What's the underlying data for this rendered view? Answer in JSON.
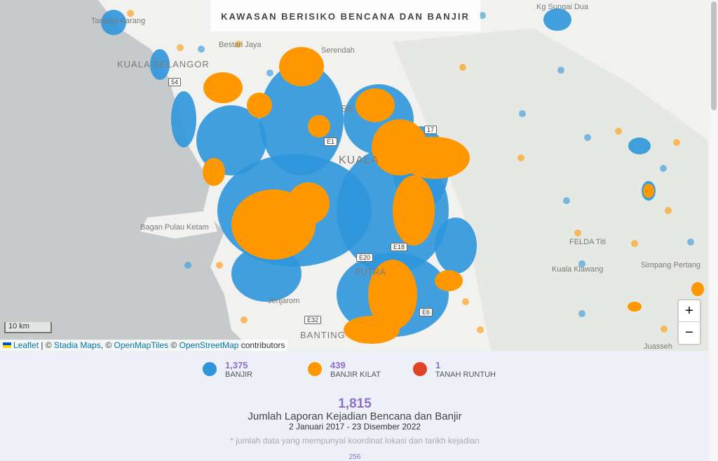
{
  "map": {
    "title": "KAWASAN BERISIKO BENCANA DAN BANJIR",
    "labels": [
      "Tanjong Karang",
      "Bestari Jaya",
      "Serendah",
      "KUALA SELANGOR",
      "Kg Sungai Dua",
      "Bagan Pulau Ketam",
      "FELDA Titi",
      "Kuala Klawang",
      "Simpang Pertang",
      "Jenjarom",
      "BANTING",
      "KUALA",
      "PUTRA",
      "SE",
      "Juasseh"
    ],
    "roads": [
      "54",
      "E1",
      "E18",
      "E20",
      "E32",
      "E6",
      "17"
    ],
    "scale": "10 km",
    "zoom_in": "+",
    "zoom_out": "−",
    "attribution": {
      "leaflet": "Leaflet",
      "sep": " | © ",
      "stadia": "Stadia Maps",
      "c2": ", © ",
      "omt": "OpenMapTiles",
      "c3": " © ",
      "osm": "OpenStreetMap",
      "tail": " contributors"
    }
  },
  "colors": {
    "banjir": "#2f96dc",
    "banjir_kilat": "#ff9800",
    "tanah_runtuh": "#e24223",
    "accent": "#8a6fd0"
  },
  "legend": [
    {
      "count": "1,375",
      "label": "BANJIR"
    },
    {
      "count": "439",
      "label": "BANJIR KILAT"
    },
    {
      "count": "1",
      "label": "TANAH RUNTUH"
    }
  ],
  "summary": {
    "total": "1,815",
    "title": "Jumlah Laporan Kejadian Bencana dan Banjir",
    "range": "2 Januari 2017 - 23 Disember 2022",
    "note": "* jumlah data yang mempunyai koordinat lokasi dan tarikh kejadian",
    "next_value": "256"
  }
}
